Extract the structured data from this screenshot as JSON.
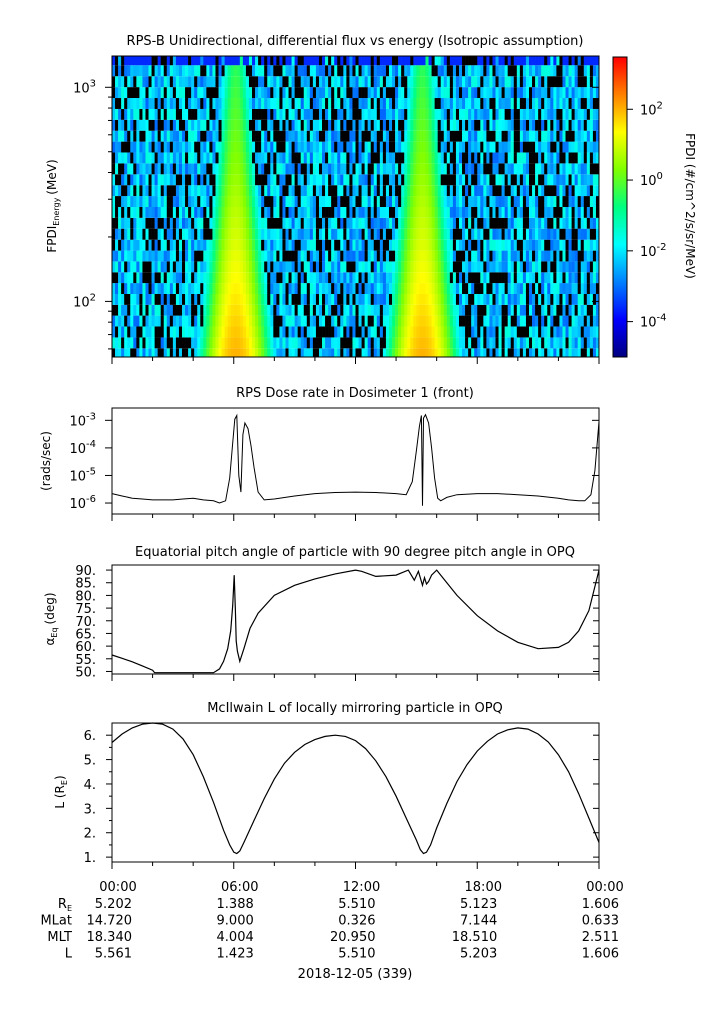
{
  "chart_data": [
    {
      "type": "heatmap",
      "title": "RPS-B  Unidirectional, differential flux vs energy (Isotropic assumption)",
      "ylabel_main": "FPDI",
      "ylabel_sub": "Energy",
      "ylabel_unit": "(MeV)",
      "yscale": "log",
      "ylim": [
        55,
        1400
      ],
      "ytick_base": "10",
      "yticks": [
        {
          "value": 100,
          "exp": "2"
        },
        {
          "value": 1000,
          "exp": "3"
        }
      ],
      "colorbar": {
        "label": "FPDI (#/cm^2/s/sr/MeV)",
        "scale": "log",
        "range": [
          1e-05,
          3000
        ],
        "ticks": [
          {
            "value": 0.0001,
            "exp": "-4"
          },
          {
            "value": 0.01,
            "exp": "-2"
          },
          {
            "value": 1,
            "exp": "0"
          },
          {
            "value": 100,
            "exp": "2"
          }
        ],
        "colors": [
          "#00007f",
          "#0000ff",
          "#0080ff",
          "#00ffff",
          "#00ff80",
          "#80ff00",
          "#ffff00",
          "#ff8000",
          "#ff0000"
        ]
      },
      "energy_channels_MeV": [
        57,
        64,
        72,
        81,
        91,
        102,
        115,
        129,
        145,
        163,
        183,
        206,
        232,
        260,
        293,
        329,
        370,
        416,
        468,
        526,
        591,
        665,
        747,
        840,
        945,
        1062,
        1195,
        1345
      ],
      "belt_crossings_hours": [
        6.1,
        15.3
      ],
      "peak_flux": 100,
      "background_flux": 0.005
    },
    {
      "type": "line",
      "title": "RPS  Dose rate in Dosimeter 1 (front)",
      "ylabel": "(rads/sec)",
      "yscale": "log",
      "ylim": [
        4e-07,
        0.0028
      ],
      "ytick_base": "10",
      "yticks": [
        {
          "value": 1e-06,
          "exp": "-6"
        },
        {
          "value": 1e-05,
          "exp": "-5"
        },
        {
          "value": 0.0001,
          "exp": "-4"
        },
        {
          "value": 0.001,
          "exp": "-3"
        }
      ],
      "x_hours": [
        0,
        0.5,
        1,
        1.5,
        2,
        2.5,
        3,
        3.5,
        4,
        4.5,
        5,
        5.3,
        5.6,
        5.8,
        5.95,
        6.05,
        6.15,
        6.25,
        6.35,
        6.45,
        6.55,
        6.7,
        6.85,
        7.0,
        7.2,
        7.5,
        8,
        9,
        10,
        11,
        12,
        13,
        14,
        14.5,
        14.8,
        15.0,
        15.15,
        15.25,
        15.3,
        15.35,
        15.45,
        15.6,
        15.75,
        15.9,
        16.05,
        16.2,
        16.5,
        17,
        18,
        19,
        20,
        21,
        22,
        22.5,
        23,
        23.3,
        23.6,
        23.8,
        24
      ],
      "y": [
        2.2e-06,
        1.8e-06,
        1.5e-06,
        1.4e-06,
        1.3e-06,
        1.3e-06,
        1.3e-06,
        1.4e-06,
        1.5e-06,
        1.3e-06,
        1.2e-06,
        1e-06,
        1.2e-06,
        8e-06,
        0.00015,
        0.0011,
        0.0015,
        1e-05,
        2.5e-06,
        0.0003,
        0.0008,
        0.0005,
        0.00012,
        2e-05,
        2.5e-06,
        1.3e-06,
        1.4e-06,
        1.8e-06,
        2.2e-06,
        2.4e-06,
        2.5e-06,
        2.4e-06,
        2.2e-06,
        2e-06,
        6e-06,
        8e-05,
        0.0006,
        0.0015,
        8e-07,
        0.0012,
        0.0016,
        0.0008,
        0.0001,
        8e-06,
        1.5e-06,
        1.2e-06,
        1.6e-06,
        2e-06,
        2.2e-06,
        2.2e-06,
        2e-06,
        1.8e-06,
        1.5e-06,
        1.3e-06,
        1.2e-06,
        1.2e-06,
        2e-06,
        1.5e-05,
        0.0009
      ]
    },
    {
      "type": "line",
      "title": "Equatorial pitch angle of particle with 90 degree pitch angle in OPQ",
      "ylabel_main": "α",
      "ylabel_sub": "Eq",
      "ylabel_unit": "(deg)",
      "ylim": [
        49,
        92
      ],
      "yticks": [
        50,
        55,
        60,
        65,
        70,
        75,
        80,
        85,
        90
      ],
      "ytick_labels": [
        "50.",
        "55.",
        "60.",
        "65.",
        "70.",
        "75.",
        "80.",
        "85.",
        "90."
      ],
      "x_hours": [
        0,
        0.5,
        1,
        1.5,
        2,
        2.1,
        3,
        4,
        5,
        5.3,
        5.5,
        5.7,
        5.85,
        5.95,
        6.02,
        6.08,
        6.12,
        6.18,
        6.3,
        6.5,
        6.8,
        7.2,
        8,
        9,
        10,
        11,
        12,
        12.3,
        13,
        14,
        14.6,
        14.9,
        15.1,
        15.3,
        15.4,
        15.5,
        15.6,
        15.75,
        16.0,
        16.3,
        17,
        18,
        19,
        20,
        21,
        22,
        22.5,
        23,
        23.5,
        24
      ],
      "y": [
        56.5,
        55.2,
        53.8,
        52.2,
        50.5,
        49.5,
        49.5,
        49.5,
        49.5,
        51,
        54,
        59,
        66,
        76,
        88,
        74,
        62,
        58,
        54,
        59,
        67,
        73,
        80,
        84,
        86.5,
        88.5,
        90,
        89.5,
        87.5,
        88,
        90,
        86,
        89.5,
        84,
        87,
        84.5,
        85.5,
        88,
        90,
        87,
        80,
        72,
        66,
        61.5,
        59,
        59.5,
        61.5,
        66,
        74,
        90
      ]
    },
    {
      "type": "line",
      "title": "McIlwain L of locally mirroring particle in OPQ",
      "ylabel_main": "L (R",
      "ylabel_sub": "E",
      "ylabel_unit": ")",
      "ylim": [
        0.8,
        6.5
      ],
      "yticks": [
        1,
        2,
        3,
        4,
        5,
        6
      ],
      "ytick_labels": [
        "1.",
        "2.",
        "3.",
        "4.",
        "5.",
        "6."
      ],
      "x_hours": [
        0,
        0.5,
        1,
        1.5,
        2,
        2.5,
        3,
        3.5,
        4,
        4.5,
        5,
        5.5,
        5.8,
        6.0,
        6.15,
        6.3,
        6.5,
        7,
        7.5,
        8,
        8.5,
        9,
        9.5,
        10,
        10.5,
        11,
        11.5,
        12,
        12.5,
        13,
        13.5,
        14,
        14.5,
        15,
        15.2,
        15.35,
        15.5,
        15.7,
        16,
        16.5,
        17,
        17.5,
        18,
        18.5,
        19,
        19.5,
        20,
        20.5,
        21,
        21.5,
        22,
        22.5,
        23,
        23.5,
        24
      ],
      "y": [
        5.7,
        6.05,
        6.3,
        6.45,
        6.5,
        6.45,
        6.25,
        5.85,
        5.2,
        4.3,
        3.25,
        2.1,
        1.5,
        1.2,
        1.15,
        1.25,
        1.6,
        2.5,
        3.4,
        4.2,
        4.85,
        5.3,
        5.62,
        5.82,
        5.95,
        6.0,
        5.95,
        5.78,
        5.45,
        4.95,
        4.3,
        3.5,
        2.6,
        1.7,
        1.3,
        1.15,
        1.2,
        1.5,
        2.2,
        3.2,
        4.1,
        4.8,
        5.35,
        5.75,
        6.05,
        6.22,
        6.3,
        6.25,
        6.05,
        5.72,
        5.2,
        4.5,
        3.6,
        2.6,
        1.6
      ]
    }
  ],
  "x_axis": {
    "range_hours": [
      0,
      24
    ],
    "tick_labels": [
      "00:00",
      "06:00",
      "12:00",
      "18:00",
      "00:00"
    ],
    "date_label": "2018-12-05 (339)"
  },
  "ephemeris": {
    "rows": [
      {
        "label": "R",
        "label_sub": "E",
        "values": [
          "5.202",
          "1.388",
          "5.510",
          "5.123",
          "1.606"
        ]
      },
      {
        "label": "MLat",
        "label_sub": "",
        "values": [
          "14.720",
          "9.000",
          "0.326",
          "7.144",
          "0.633"
        ]
      },
      {
        "label": "MLT",
        "label_sub": "",
        "values": [
          "18.340",
          "4.004",
          "20.950",
          "18.510",
          "2.511"
        ]
      },
      {
        "label": "L",
        "label_sub": "",
        "values": [
          "5.561",
          "1.423",
          "5.510",
          "5.203",
          "1.606"
        ]
      }
    ]
  }
}
